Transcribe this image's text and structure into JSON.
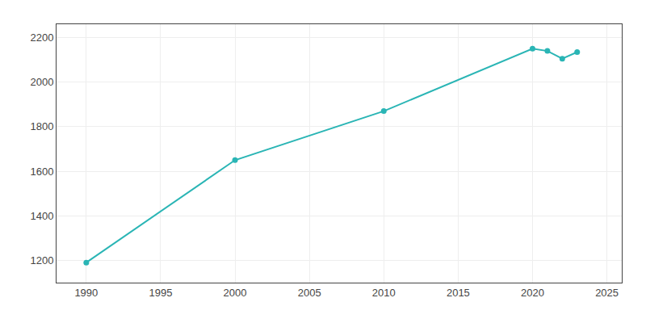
{
  "chart_data": {
    "type": "line",
    "x": [
      1990,
      2000,
      2010,
      2020,
      2021,
      2022,
      2023
    ],
    "values": [
      1190,
      1650,
      1870,
      2150,
      2140,
      2105,
      2135
    ],
    "color": "#2ab5b5",
    "marker": "circle",
    "xlim": [
      1988,
      2026
    ],
    "ylim": [
      1100,
      2260
    ],
    "xticks": [
      1990,
      1995,
      2000,
      2005,
      2010,
      2015,
      2020,
      2025
    ],
    "yticks": [
      1200,
      1400,
      1600,
      1800,
      2000,
      2200
    ],
    "grid": true
  }
}
